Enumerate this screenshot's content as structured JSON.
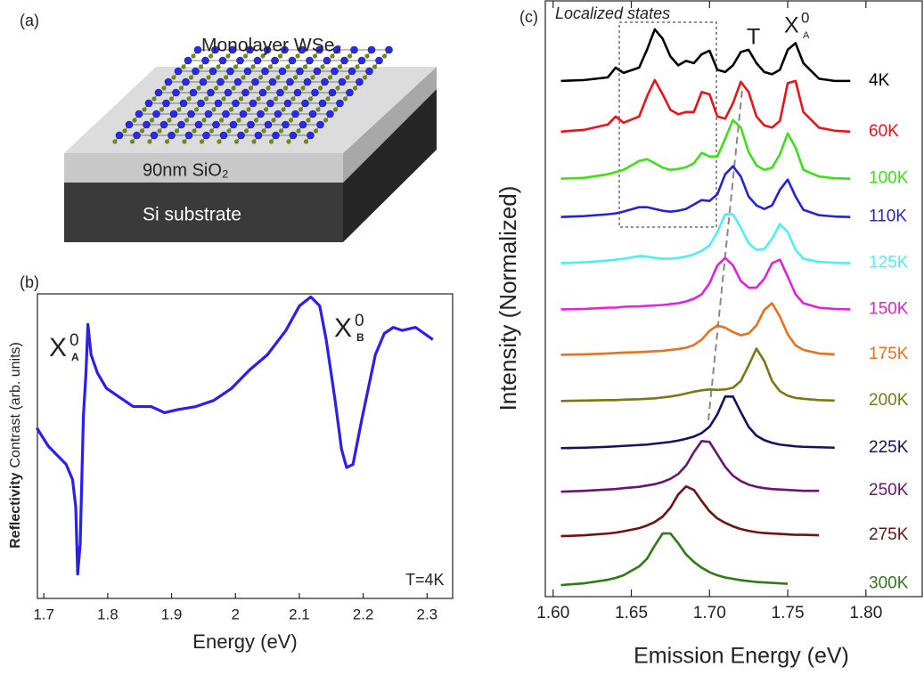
{
  "diagram": {
    "panel_label": "(a)",
    "layer_label": "Monolayer WSe₂",
    "oxide_label": "90nm SiO₂",
    "substrate_label": "Si substrate"
  },
  "chart_data": [
    {
      "type": "line",
      "panel_label": "(b)",
      "xlabel": "Energy (eV)",
      "ylabel_bold": "Reflectivity",
      "ylabel": "Contrast (arb. units)",
      "color": "#2a1ff0",
      "xlim": [
        1.69,
        2.34
      ],
      "ylim": [
        0,
        10
      ],
      "xticks": [
        1.7,
        1.8,
        1.9,
        2.0,
        2.1,
        2.2,
        2.3
      ],
      "annotations": [
        {
          "base": "X",
          "sup": "0",
          "sub": "A"
        },
        {
          "base": "X",
          "sup": "0",
          "sub": "B"
        }
      ],
      "note": "T=4K",
      "x": [
        1.689,
        1.707,
        1.721,
        1.735,
        1.745,
        1.75,
        1.753,
        1.757,
        1.762,
        1.766,
        1.769,
        1.774,
        1.784,
        1.798,
        1.819,
        1.84,
        1.868,
        1.889,
        1.91,
        1.938,
        1.966,
        1.994,
        2.022,
        2.05,
        2.079,
        2.1,
        2.118,
        2.132,
        2.142,
        2.156,
        2.166,
        2.174,
        2.184,
        2.198,
        2.219,
        2.233,
        2.247,
        2.261,
        2.282,
        2.309
      ],
      "values": [
        5.6,
        5.0,
        4.7,
        4.4,
        3.9,
        3.0,
        0.8,
        1.8,
        6.0,
        7.4,
        9.0,
        8.0,
        7.4,
        6.9,
        6.6,
        6.3,
        6.3,
        6.1,
        6.2,
        6.3,
        6.5,
        6.9,
        7.5,
        8.0,
        8.8,
        9.6,
        9.9,
        9.6,
        8.5,
        6.5,
        4.9,
        4.3,
        4.4,
        5.9,
        8.0,
        8.7,
        8.9,
        8.8,
        8.9,
        8.5
      ]
    },
    {
      "type": "line",
      "panel_label": "(c)",
      "xlabel": "Emission Energy (eV)",
      "ylabel": "Intensity (Normalized)",
      "xlim": [
        1.595,
        1.836
      ],
      "ylim": [
        0,
        13.4
      ],
      "xticks": [
        {
          "value": 1.6,
          "label": "1.60"
        },
        1.65,
        {
          "value": 1.7,
          "label": "1.70"
        },
        1.75,
        {
          "value": 1.8,
          "label": "1.80"
        }
      ],
      "region_label": "Localized states",
      "trion_label": "T",
      "exciton_label": {
        "base": "X",
        "sup": "0",
        "sub": "A"
      },
      "series": [
        {
          "name": "4K",
          "color": "#000000",
          "x": [
            1.605,
            1.62,
            1.635,
            1.64,
            1.645,
            1.655,
            1.66,
            1.665,
            1.67,
            1.675,
            1.68,
            1.685,
            1.69,
            1.695,
            1.7,
            1.705,
            1.71,
            1.715,
            1.72,
            1.725,
            1.73,
            1.735,
            1.74,
            1.745,
            1.75,
            1.755,
            1.76,
            1.77,
            1.78,
            1.79
          ],
          "values": [
            11.6,
            11.62,
            11.68,
            11.9,
            11.78,
            11.9,
            12.3,
            12.76,
            12.55,
            12.15,
            11.95,
            12.05,
            12.0,
            12.2,
            12.28,
            11.85,
            11.8,
            11.95,
            12.25,
            12.3,
            12.0,
            11.8,
            11.75,
            11.85,
            12.3,
            12.45,
            12.0,
            11.65,
            11.6,
            11.6
          ]
        },
        {
          "name": "60K",
          "color": "#e8141a",
          "x": [
            1.605,
            1.62,
            1.635,
            1.64,
            1.645,
            1.655,
            1.66,
            1.665,
            1.67,
            1.675,
            1.68,
            1.685,
            1.69,
            1.695,
            1.7,
            1.705,
            1.71,
            1.715,
            1.72,
            1.725,
            1.73,
            1.735,
            1.74,
            1.745,
            1.75,
            1.755,
            1.76,
            1.77,
            1.78,
            1.79
          ],
          "values": [
            10.46,
            10.5,
            10.62,
            10.8,
            10.66,
            10.8,
            11.25,
            11.62,
            11.3,
            10.95,
            10.85,
            10.9,
            10.9,
            11.35,
            11.3,
            10.8,
            10.75,
            11.1,
            11.58,
            11.35,
            10.8,
            10.6,
            10.55,
            10.7,
            11.55,
            11.6,
            10.9,
            10.55,
            10.48,
            10.46
          ]
        },
        {
          "name": "100K",
          "color": "#3ce014",
          "x": [
            1.605,
            1.62,
            1.635,
            1.64,
            1.645,
            1.655,
            1.66,
            1.665,
            1.67,
            1.675,
            1.68,
            1.685,
            1.69,
            1.695,
            1.7,
            1.705,
            1.71,
            1.715,
            1.72,
            1.725,
            1.73,
            1.735,
            1.74,
            1.745,
            1.75,
            1.755,
            1.76,
            1.77,
            1.78,
            1.79
          ],
          "values": [
            9.4,
            9.42,
            9.5,
            9.55,
            9.6,
            9.8,
            9.84,
            9.75,
            9.65,
            9.6,
            9.62,
            9.66,
            9.75,
            9.98,
            9.9,
            9.9,
            10.3,
            10.72,
            10.55,
            10.0,
            9.7,
            9.6,
            9.65,
            9.95,
            10.42,
            10.1,
            9.6,
            9.45,
            9.41,
            9.4
          ]
        },
        {
          "name": "110K",
          "color": "#2323d6",
          "x": [
            1.605,
            1.62,
            1.635,
            1.64,
            1.645,
            1.655,
            1.66,
            1.665,
            1.67,
            1.675,
            1.68,
            1.685,
            1.69,
            1.695,
            1.7,
            1.705,
            1.71,
            1.715,
            1.72,
            1.725,
            1.73,
            1.735,
            1.74,
            1.745,
            1.75,
            1.755,
            1.76,
            1.77,
            1.78,
            1.79
          ],
          "values": [
            8.54,
            8.56,
            8.6,
            8.62,
            8.66,
            8.76,
            8.76,
            8.72,
            8.68,
            8.66,
            8.68,
            8.72,
            8.82,
            8.92,
            8.9,
            9.05,
            9.5,
            9.68,
            9.45,
            9.0,
            8.8,
            8.72,
            8.8,
            9.15,
            9.38,
            9.0,
            8.7,
            8.58,
            8.55,
            8.54
          ]
        },
        {
          "name": "125K",
          "color": "#4df0f0",
          "x": [
            1.605,
            1.62,
            1.635,
            1.64,
            1.645,
            1.655,
            1.66,
            1.665,
            1.67,
            1.675,
            1.68,
            1.685,
            1.69,
            1.695,
            1.7,
            1.705,
            1.71,
            1.715,
            1.72,
            1.725,
            1.73,
            1.735,
            1.74,
            1.745,
            1.75,
            1.755,
            1.76,
            1.77,
            1.78,
            1.79
          ],
          "values": [
            7.5,
            7.52,
            7.56,
            7.58,
            7.6,
            7.66,
            7.65,
            7.62,
            7.6,
            7.6,
            7.62,
            7.65,
            7.7,
            7.78,
            7.9,
            8.2,
            8.6,
            8.6,
            8.3,
            7.95,
            7.8,
            7.82,
            8.05,
            8.38,
            8.2,
            7.8,
            7.6,
            7.53,
            7.51,
            7.5
          ]
        },
        {
          "name": "150K",
          "color": "#e021e0",
          "x": [
            1.605,
            1.62,
            1.635,
            1.64,
            1.645,
            1.655,
            1.66,
            1.665,
            1.67,
            1.675,
            1.68,
            1.685,
            1.69,
            1.695,
            1.7,
            1.705,
            1.71,
            1.715,
            1.72,
            1.725,
            1.73,
            1.735,
            1.74,
            1.745,
            1.75,
            1.755,
            1.76,
            1.77,
            1.78,
            1.79
          ],
          "values": [
            6.46,
            6.47,
            6.5,
            6.5,
            6.52,
            6.53,
            6.54,
            6.55,
            6.56,
            6.58,
            6.6,
            6.64,
            6.7,
            6.8,
            7.05,
            7.45,
            7.62,
            7.45,
            7.1,
            6.95,
            6.95,
            7.15,
            7.5,
            7.58,
            7.2,
            6.8,
            6.6,
            6.5,
            6.47,
            6.46
          ]
        },
        {
          "name": "175K",
          "color": "#e8701e",
          "x": [
            1.605,
            1.62,
            1.635,
            1.64,
            1.645,
            1.655,
            1.66,
            1.665,
            1.67,
            1.675,
            1.68,
            1.685,
            1.69,
            1.695,
            1.7,
            1.705,
            1.71,
            1.715,
            1.72,
            1.725,
            1.73,
            1.735,
            1.74,
            1.745,
            1.75,
            1.755,
            1.76,
            1.77,
            1.78
          ],
          "values": [
            5.44,
            5.45,
            5.47,
            5.48,
            5.49,
            5.5,
            5.51,
            5.52,
            5.53,
            5.55,
            5.57,
            5.6,
            5.66,
            5.78,
            5.98,
            6.1,
            6.05,
            5.95,
            5.88,
            5.92,
            6.1,
            6.45,
            6.6,
            6.3,
            5.9,
            5.65,
            5.55,
            5.47,
            5.45
          ]
        },
        {
          "name": "200K",
          "color": "#7a7812",
          "x": [
            1.605,
            1.62,
            1.635,
            1.64,
            1.645,
            1.655,
            1.66,
            1.665,
            1.67,
            1.675,
            1.68,
            1.685,
            1.69,
            1.695,
            1.7,
            1.705,
            1.71,
            1.715,
            1.72,
            1.725,
            1.73,
            1.735,
            1.74,
            1.745,
            1.75,
            1.755,
            1.76,
            1.77,
            1.78
          ],
          "values": [
            4.4,
            4.41,
            4.42,
            4.42,
            4.43,
            4.44,
            4.45,
            4.46,
            4.48,
            4.5,
            4.53,
            4.57,
            4.61,
            4.64,
            4.66,
            4.65,
            4.66,
            4.7,
            4.85,
            5.2,
            5.58,
            5.3,
            4.85,
            4.62,
            4.52,
            4.47,
            4.45,
            4.42,
            4.41
          ]
        },
        {
          "name": "225K",
          "color": "#12125e",
          "x": [
            1.605,
            1.62,
            1.635,
            1.64,
            1.645,
            1.655,
            1.66,
            1.665,
            1.67,
            1.675,
            1.68,
            1.685,
            1.69,
            1.695,
            1.7,
            1.705,
            1.71,
            1.715,
            1.72,
            1.725,
            1.73,
            1.735,
            1.74,
            1.745,
            1.75,
            1.755,
            1.76,
            1.77,
            1.78
          ],
          "values": [
            3.34,
            3.35,
            3.37,
            3.38,
            3.39,
            3.41,
            3.42,
            3.44,
            3.46,
            3.48,
            3.51,
            3.55,
            3.6,
            3.68,
            3.82,
            4.1,
            4.5,
            4.5,
            4.15,
            3.82,
            3.62,
            3.52,
            3.46,
            3.42,
            3.4,
            3.38,
            3.37,
            3.36,
            3.35
          ]
        },
        {
          "name": "250K",
          "color": "#6a1470",
          "x": [
            1.605,
            1.62,
            1.635,
            1.64,
            1.645,
            1.655,
            1.66,
            1.665,
            1.67,
            1.675,
            1.68,
            1.685,
            1.69,
            1.695,
            1.7,
            1.705,
            1.71,
            1.715,
            1.72,
            1.725,
            1.73,
            1.735,
            1.74,
            1.745,
            1.75,
            1.755,
            1.76,
            1.77
          ],
          "values": [
            2.36,
            2.38,
            2.41,
            2.42,
            2.44,
            2.47,
            2.5,
            2.53,
            2.58,
            2.65,
            2.76,
            2.95,
            3.25,
            3.5,
            3.48,
            3.2,
            2.92,
            2.72,
            2.6,
            2.52,
            2.47,
            2.44,
            2.42,
            2.41,
            2.4,
            2.39,
            2.38,
            2.38
          ]
        },
        {
          "name": "275K",
          "color": "#6e1212",
          "x": [
            1.605,
            1.62,
            1.635,
            1.64,
            1.645,
            1.655,
            1.66,
            1.665,
            1.67,
            1.675,
            1.68,
            1.685,
            1.69,
            1.695,
            1.7,
            1.705,
            1.71,
            1.715,
            1.72,
            1.725,
            1.73,
            1.735,
            1.74,
            1.745,
            1.75,
            1.755,
            1.76,
            1.77
          ],
          "values": [
            1.36,
            1.38,
            1.42,
            1.44,
            1.47,
            1.54,
            1.6,
            1.68,
            1.8,
            2.0,
            2.3,
            2.48,
            2.4,
            2.15,
            1.92,
            1.76,
            1.66,
            1.58,
            1.52,
            1.48,
            1.45,
            1.43,
            1.42,
            1.41,
            1.4,
            1.39,
            1.39,
            1.38
          ]
        },
        {
          "name": "300K",
          "color": "#2e7a14",
          "x": [
            1.605,
            1.62,
            1.635,
            1.64,
            1.645,
            1.655,
            1.66,
            1.665,
            1.67,
            1.675,
            1.68,
            1.685,
            1.69,
            1.695,
            1.7,
            1.705,
            1.71,
            1.715,
            1.72,
            1.725,
            1.73,
            1.735,
            1.74,
            1.745,
            1.75
          ],
          "values": [
            0.26,
            0.3,
            0.38,
            0.42,
            0.48,
            0.68,
            0.85,
            1.15,
            1.42,
            1.42,
            1.2,
            0.95,
            0.78,
            0.65,
            0.55,
            0.48,
            0.43,
            0.4,
            0.37,
            0.35,
            0.33,
            0.32,
            0.31,
            0.3,
            0.29
          ]
        }
      ]
    }
  ]
}
